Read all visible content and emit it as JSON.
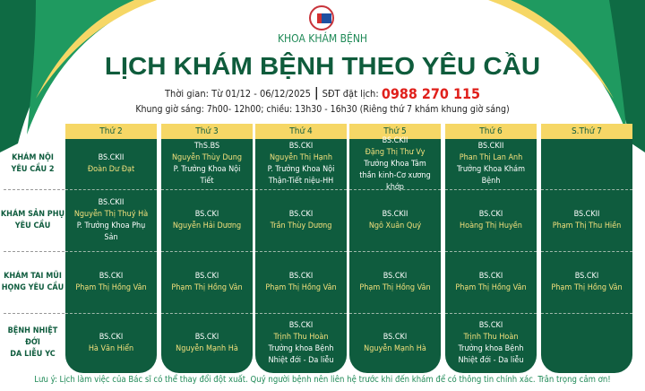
{
  "header": {
    "department": "KHOA KHÁM BỆNH",
    "title": "LỊCH KHÁM BỆNH THEO YÊU CẦU",
    "time_label": "Thời gian: Từ 01/12 - 06/12/2025",
    "phone_label": "SĐT đặt lịch:",
    "phone": "0988 270 115",
    "hours": "Khung giờ sáng: 7h00- 12h00; chiều: 13h30 - 16h30 (Riêng thứ 7 khám khung giờ sáng)"
  },
  "colors": {
    "primary": "#0f5c3e",
    "header_yellow": "#f6d766",
    "name_yellow": "#f3e07c",
    "phone_red": "#e0201b"
  },
  "rows": [
    "KHÁM NỘI\nYÊU CẦU 2",
    "KHÁM SẢN PHỤ\nYÊU CẦU",
    "KHÁM TAI MŨI\nHỌNG YÊU CẦU",
    "BỆNH NHIỆT ĐỚI\nDA LIỄU YC"
  ],
  "columns": [
    {
      "day": "Thứ 2",
      "cells": [
        {
          "title": "BS.CKII",
          "name": "Đoàn Dư Đạt",
          "role": ""
        },
        {
          "title": "BS.CKII",
          "name": "Nguyễn Thị Thuý Hà",
          "role": "P. Trưởng Khoa Phụ Sản"
        },
        {
          "title": "BS.CKI",
          "name": "Phạm Thị Hồng Vân",
          "role": ""
        },
        {
          "title": "BS.CKI",
          "name": "Hà Văn Hiển",
          "role": ""
        }
      ]
    },
    {
      "day": "Thứ 3",
      "cells": [
        {
          "title": "ThS.BS",
          "name": "Nguyễn Thùy Dung",
          "role": "P. Trưởng Khoa Nội Tiết"
        },
        {
          "title": "BS.CKI",
          "name": "Nguyễn Hải Dương",
          "role": ""
        },
        {
          "title": "BS.CKI",
          "name": "Phạm Thị Hồng Vân",
          "role": ""
        },
        {
          "title": "BS.CKI",
          "name": "Nguyễn Mạnh Hà",
          "role": ""
        }
      ]
    },
    {
      "day": "Thứ 4",
      "cells": [
        {
          "title": "BS.CKI",
          "name": "Nguyễn Thị Hạnh",
          "role": "P. Trưởng Khoa Nội Thận-Tiết niệu-HH"
        },
        {
          "title": "BS.CKI",
          "name": "Trần Thùy Dương",
          "role": ""
        },
        {
          "title": "BS.CKI",
          "name": "Phạm Thị Hồng Vân",
          "role": ""
        },
        {
          "title": "BS.CKI",
          "name": "Trịnh Thu Hoàn",
          "role": "Trưởng khoa Bệnh Nhiệt đới - Da liễu"
        }
      ]
    },
    {
      "day": "Thứ 5",
      "cells": [
        {
          "title": "BS.CKII",
          "name": "Đặng Thị Thư Vy",
          "role": "Trưởng Khoa Tâm thần kinh-Cơ xương khớp"
        },
        {
          "title": "BS.CKII",
          "name": "Ngô Xuân Quý",
          "role": ""
        },
        {
          "title": "BS.CKI",
          "name": "Phạm Thị Hồng Vân",
          "role": ""
        },
        {
          "title": "BS.CKI",
          "name": "Nguyễn Mạnh Hà",
          "role": ""
        }
      ]
    },
    {
      "day": "Thứ 6",
      "cells": [
        {
          "title": "BS.CKII",
          "name": "Phan Thị Lan Anh",
          "role": "Trưởng Khoa Khám Bệnh"
        },
        {
          "title": "BS.CKI",
          "name": "Hoàng Thị Huyền",
          "role": ""
        },
        {
          "title": "BS.CKI",
          "name": "Phạm Thị Hồng Vân",
          "role": ""
        },
        {
          "title": "BS.CKI",
          "name": "Trịnh Thu Hoàn",
          "role": "Trưởng khoa Bệnh Nhiệt đới - Da liễu"
        }
      ]
    },
    {
      "day": "S.Thứ 7",
      "cells": [
        {
          "title": "",
          "name": "",
          "role": ""
        },
        {
          "title": "BS.CKII",
          "name": "Phạm Thị Thu Hiền",
          "role": ""
        },
        {
          "title": "BS.CKI",
          "name": "Phạm Thị Hồng Vân",
          "role": ""
        },
        {
          "title": "",
          "name": "",
          "role": ""
        }
      ]
    }
  ],
  "note": "Lưu ý: Lịch làm việc của Bác sĩ có thể thay đổi đột xuất. Quý người bệnh nên liên hệ trước khi đến khám để có thông tin chính xác. Trân trọng cảm ơn!"
}
